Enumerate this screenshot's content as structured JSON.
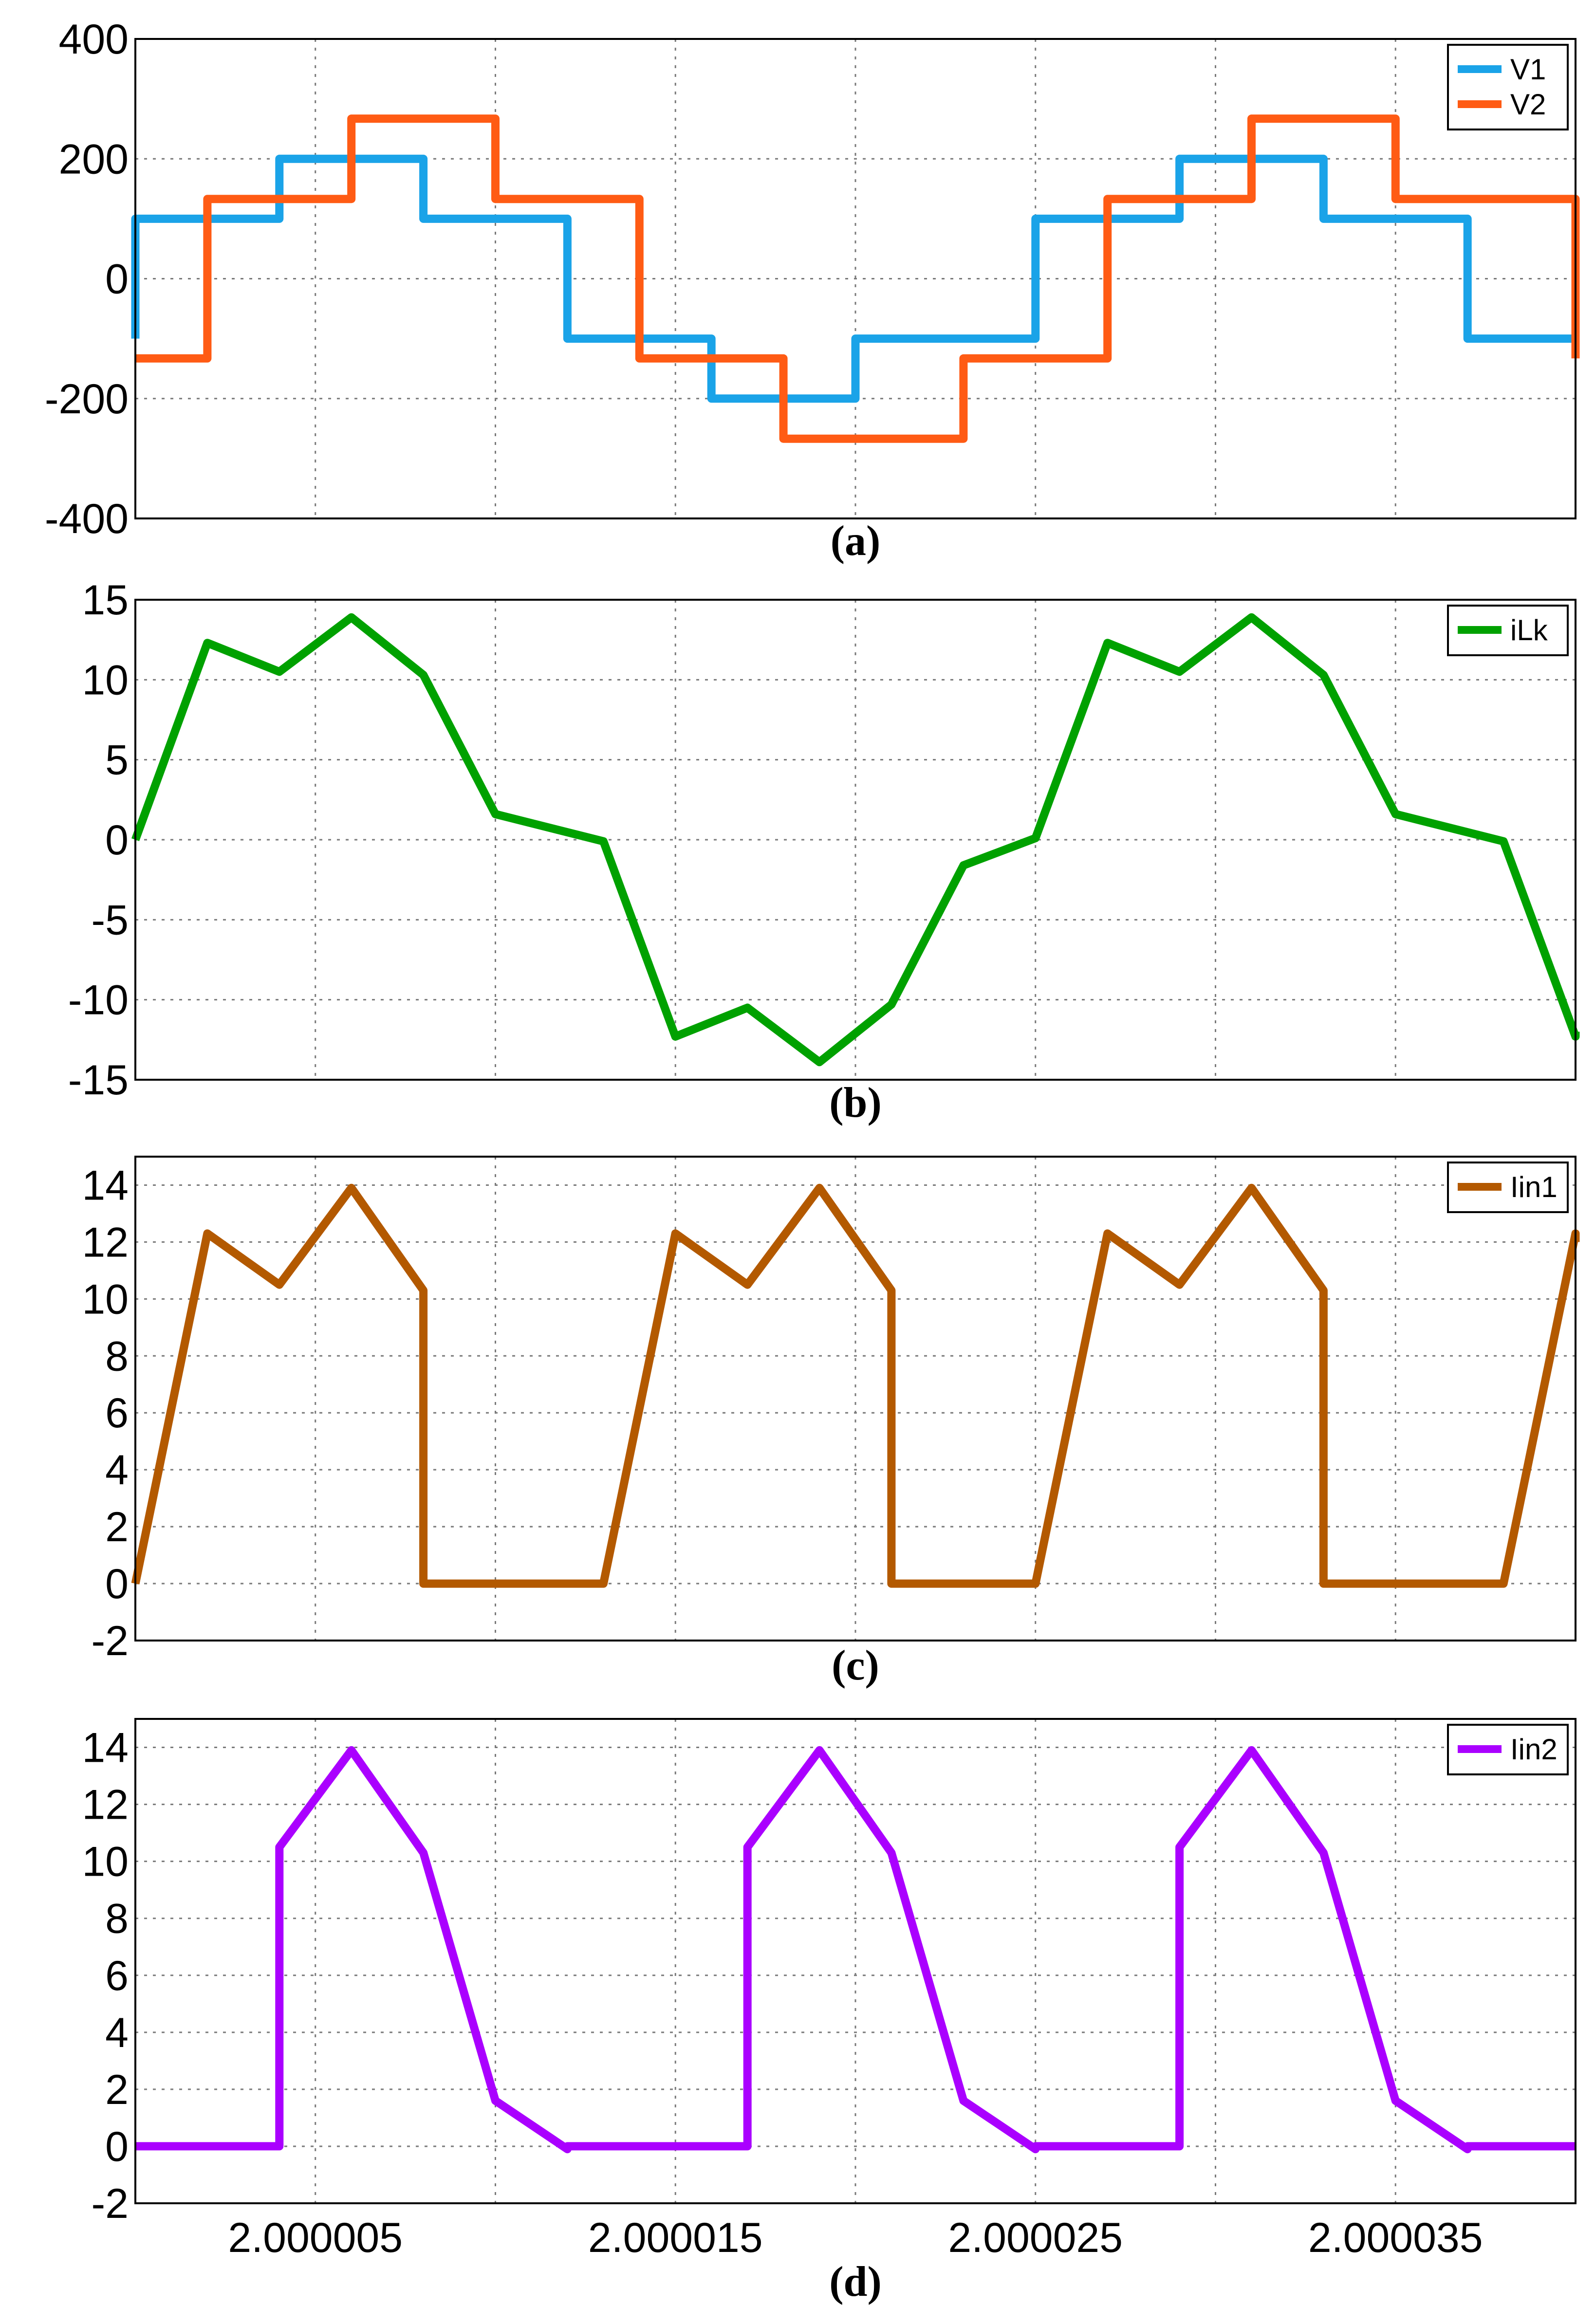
{
  "chart_data": [
    {
      "type": "line",
      "caption": "(a)",
      "ylim": [
        -400,
        400
      ],
      "yticks": [
        400,
        200,
        0,
        -200,
        -400
      ],
      "ytick_labels": [
        "400",
        "200",
        "0",
        "-200",
        "-400"
      ],
      "xlim": [
        2.0,
        2.00004
      ],
      "grid": true,
      "legend_position": "top-right",
      "series": [
        {
          "name": "V1",
          "color": "#1aa3e8",
          "x": [
            2.0,
            2.0,
            2.000004,
            2.000004,
            2.000008,
            2.000008,
            2.000012,
            2.000012,
            2.000016,
            2.000016,
            2.00002,
            2.00002,
            2.000025,
            2.000025,
            2.000029,
            2.000029,
            2.000033,
            2.000033,
            2.000037,
            2.000037,
            2.00004
          ],
          "y": [
            -100,
            100,
            100,
            200,
            200,
            100,
            100,
            -100,
            -100,
            -200,
            -200,
            -100,
            -100,
            100,
            100,
            200,
            200,
            100,
            100,
            -100,
            -100
          ]
        },
        {
          "name": "V2",
          "color": "#ff5b14",
          "x": [
            2.0,
            2.000002,
            2.000002,
            2.000006,
            2.000006,
            2.00001,
            2.00001,
            2.000014,
            2.000014,
            2.000018,
            2.000018,
            2.000023,
            2.000023,
            2.000027,
            2.000027,
            2.000031,
            2.000031,
            2.000035,
            2.000035,
            2.00004,
            2.00004
          ],
          "y": [
            -133,
            -133,
            133,
            133,
            267,
            267,
            133,
            133,
            -133,
            -133,
            -267,
            -267,
            -133,
            -133,
            133,
            133,
            267,
            267,
            133,
            133,
            -133
          ]
        }
      ]
    },
    {
      "type": "line",
      "caption": "(b)",
      "ylim": [
        -15,
        15
      ],
      "yticks": [
        15,
        10,
        5,
        0,
        -5,
        -10,
        -15
      ],
      "ytick_labels": [
        "15",
        "10",
        "5",
        "0",
        "-5",
        "-10",
        "-15"
      ],
      "xlim": [
        2.0,
        2.00004
      ],
      "grid": true,
      "legend_position": "top-right",
      "series": [
        {
          "name": "iLk",
          "color": "#00a100",
          "x": [
            2.0,
            2.000002,
            2.000004,
            2.000006,
            2.000008,
            2.00001,
            2.000013,
            2.000015,
            2.000017,
            2.000019,
            2.000021,
            2.000023,
            2.000025,
            2.000027,
            2.000029,
            2.000031,
            2.000033,
            2.000035,
            2.000038,
            2.00004,
            2.00004
          ],
          "y": [
            0,
            12.3,
            10.5,
            13.9,
            10.3,
            1.6,
            -0.1,
            -12.3,
            -10.5,
            -13.9,
            -10.3,
            -1.6,
            0.1,
            12.3,
            10.5,
            13.9,
            10.3,
            1.6,
            -0.1,
            -12.3,
            -12.0
          ]
        }
      ]
    },
    {
      "type": "line",
      "caption": "(c)",
      "ylim": [
        -2,
        15
      ],
      "yticks": [
        14,
        12,
        10,
        8,
        6,
        4,
        2,
        0,
        -2
      ],
      "ytick_labels": [
        "14",
        "12",
        "10",
        "8",
        "6",
        "4",
        "2",
        "0",
        "-2"
      ],
      "xlim": [
        2.0,
        2.00004
      ],
      "grid": true,
      "legend_position": "top-right",
      "series": [
        {
          "name": "Iin1",
          "color": "#b35900",
          "x": [
            2.0,
            2.000002,
            2.000004,
            2.000006,
            2.000008,
            2.000008,
            2.000013,
            2.000015,
            2.000017,
            2.000019,
            2.000021,
            2.000021,
            2.000025,
            2.000027,
            2.000029,
            2.000031,
            2.000033,
            2.000033,
            2.000038,
            2.00004,
            2.00004
          ],
          "y": [
            0,
            12.3,
            10.5,
            13.9,
            10.3,
            0,
            0,
            12.3,
            10.5,
            13.9,
            10.3,
            0,
            0,
            12.3,
            10.5,
            13.9,
            10.3,
            0,
            0,
            12.3,
            12.0
          ]
        }
      ]
    },
    {
      "type": "line",
      "caption": "(d)",
      "ylim": [
        -2,
        15
      ],
      "yticks": [
        14,
        12,
        10,
        8,
        6,
        4,
        2,
        0,
        -2
      ],
      "ytick_labels": [
        "14",
        "12",
        "10",
        "8",
        "6",
        "4",
        "2",
        "0",
        "-2"
      ],
      "xlim": [
        2.0,
        2.00004
      ],
      "xticks": [
        2.000005,
        2.000015,
        2.000025,
        2.000035
      ],
      "xtick_labels": [
        "2.000005",
        "2.000015",
        "2.000025",
        "2.000035"
      ],
      "grid": true,
      "legend_position": "top-right",
      "series": [
        {
          "name": "Iin2",
          "color": "#aa00ff",
          "x": [
            2.0,
            2.000004,
            2.000004,
            2.000006,
            2.000008,
            2.00001,
            2.000012,
            2.000012,
            2.000017,
            2.000017,
            2.000019,
            2.000021,
            2.000023,
            2.000025,
            2.000025,
            2.000029,
            2.000029,
            2.000031,
            2.000033,
            2.000035,
            2.000037,
            2.000037,
            2.00004
          ],
          "y": [
            0,
            0,
            10.5,
            13.9,
            10.3,
            1.6,
            -0.1,
            0,
            0,
            10.5,
            13.9,
            10.3,
            1.6,
            -0.1,
            0,
            0,
            10.5,
            13.9,
            10.3,
            1.6,
            -0.1,
            0,
            0
          ]
        }
      ]
    }
  ]
}
